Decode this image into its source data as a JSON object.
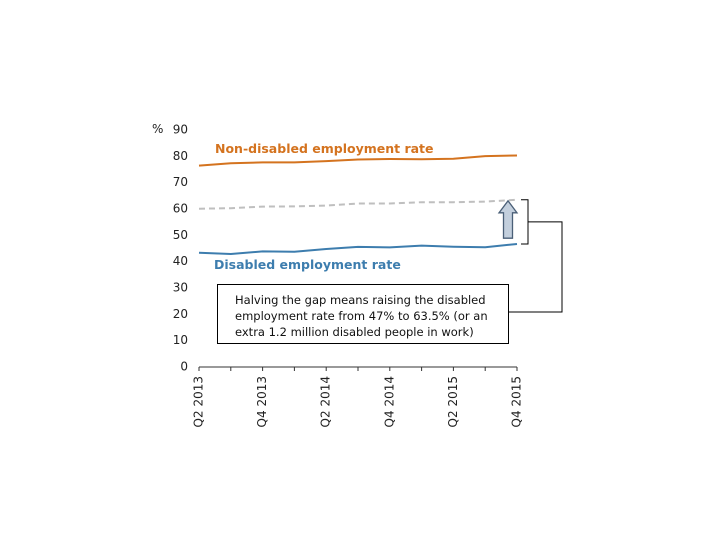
{
  "chart_data": {
    "type": "line",
    "ylabel": "%",
    "ylim": [
      0,
      90
    ],
    "y_ticks": [
      0,
      10,
      20,
      30,
      40,
      50,
      60,
      70,
      80,
      90
    ],
    "x": [
      "Q2 2013",
      "Q3 2013",
      "Q4 2013",
      "Q1 2014",
      "Q2 2014",
      "Q3 2014",
      "Q4 2014",
      "Q1 2015",
      "Q2 2015",
      "Q3 2015",
      "Q4 2015"
    ],
    "x_tick_labels": [
      "Q2 2013",
      "Q4 2013",
      "Q2 2014",
      "Q4 2014",
      "Q2 2015",
      "Q4 2015"
    ],
    "series": [
      {
        "name": "Non-disabled employment rate",
        "color": "#d4731f",
        "style": "solid",
        "values": [
          76.5,
          77.4,
          77.7,
          77.7,
          78.2,
          78.8,
          79.0,
          78.9,
          79.1,
          80.1,
          80.3
        ]
      },
      {
        "name": "",
        "color": "#bfbfbf",
        "style": "dashed",
        "values": [
          60.1,
          60.3,
          60.9,
          61.0,
          61.3,
          62.1,
          62.1,
          62.6,
          62.6,
          62.8,
          63.5
        ]
      },
      {
        "name": "Disabled employment rate",
        "color": "#3d7dae",
        "style": "solid",
        "values": [
          43.4,
          42.9,
          43.9,
          43.8,
          44.8,
          45.6,
          45.4,
          46.1,
          45.7,
          45.5,
          46.7
        ]
      }
    ],
    "annotation": "Halving the gap means raising the disabled employment rate from 47% to 63.5% (or an extra 1.2 million disabled people in work)",
    "arrow": {
      "from": 47,
      "to": 63.5
    },
    "bracket": {
      "from": 46.7,
      "to": 63.5
    }
  }
}
